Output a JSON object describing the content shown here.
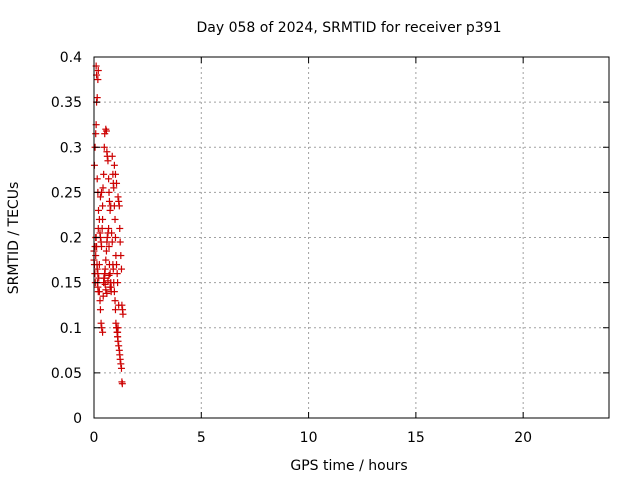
{
  "chart_data": {
    "type": "scatter",
    "title": "Day 058 of 2024, SRMTID for receiver p391",
    "xlabel": "GPS time / hours",
    "ylabel": "SRMTID / TECUs",
    "xlim": [
      0,
      24
    ],
    "ylim": [
      0,
      0.4
    ],
    "x_ticks": [
      0,
      5,
      10,
      15,
      20
    ],
    "x_tick_labels": [
      "0",
      "5",
      "10",
      "15",
      "20"
    ],
    "y_ticks": [
      0,
      0.05,
      0.1,
      0.15,
      0.2,
      0.25,
      0.3,
      0.35,
      0.4
    ],
    "y_tick_labels": [
      "0",
      "0.05",
      "0.1",
      "0.15",
      "0.2",
      "0.25",
      "0.3",
      "0.35",
      "0.4"
    ],
    "grid": true,
    "marker": "+",
    "color": "#cc0000",
    "series": [
      {
        "name": "SRMTID",
        "x": [
          0.0,
          0.02,
          0.04,
          0.06,
          0.08,
          0.1,
          0.12,
          0.14,
          0.16,
          0.18,
          0.2,
          0.02,
          0.05,
          0.08,
          0.1,
          0.12,
          0.15,
          0.18,
          0.2,
          0.1,
          0.12,
          0.15,
          0.18,
          0.21,
          0.25,
          0.28,
          0.3,
          0.33,
          0.35,
          0.38,
          0.4,
          0.42,
          0.45,
          0.48,
          0.5,
          0.25,
          0.28,
          0.3,
          0.33,
          0.36,
          0.4,
          0.43,
          0.46,
          0.5,
          0.52,
          0.55,
          0.58,
          0.6,
          0.62,
          0.65,
          0.68,
          0.7,
          0.72,
          0.75,
          0.78,
          0.8,
          0.55,
          0.58,
          0.6,
          0.62,
          0.65,
          0.68,
          0.7,
          0.72,
          0.75,
          0.78,
          0.82,
          0.85,
          0.88,
          0.9,
          0.92,
          0.95,
          0.98,
          1.0,
          1.02,
          1.05,
          1.08,
          1.1,
          0.85,
          0.88,
          0.9,
          0.92,
          0.95,
          0.98,
          1.0,
          1.02,
          1.05,
          1.08,
          1.1,
          1.12,
          1.15,
          1.18,
          1.2,
          1.22,
          1.25,
          1.28,
          1.3,
          1.32,
          1.12,
          1.15,
          1.18,
          1.2,
          1.22,
          1.25,
          1.28,
          1.3,
          1.33,
          1.35,
          0.45,
          0.48,
          0.5,
          0.52,
          0.55,
          0.6,
          0.65,
          0.7,
          0.75,
          0.8,
          0.95,
          1.0,
          1.05,
          1.1,
          1.15,
          0.3,
          0.35,
          0.4,
          0.2,
          0.25,
          0.15,
          0.18,
          0.22,
          0.0,
          0.05,
          0.08,
          1.05,
          1.08,
          1.1,
          1.12
        ],
        "y": [
          0.185,
          0.17,
          0.16,
          0.15,
          0.18,
          0.2,
          0.19,
          0.17,
          0.15,
          0.145,
          0.14,
          0.28,
          0.3,
          0.315,
          0.325,
          0.35,
          0.355,
          0.375,
          0.385,
          0.39,
          0.38,
          0.265,
          0.25,
          0.23,
          0.22,
          0.205,
          0.2,
          0.195,
          0.19,
          0.21,
          0.235,
          0.255,
          0.27,
          0.3,
          0.315,
          0.14,
          0.13,
          0.12,
          0.105,
          0.1,
          0.095,
          0.135,
          0.155,
          0.16,
          0.165,
          0.175,
          0.185,
          0.195,
          0.2,
          0.205,
          0.21,
          0.19,
          0.17,
          0.16,
          0.15,
          0.145,
          0.32,
          0.318,
          0.295,
          0.29,
          0.285,
          0.265,
          0.25,
          0.24,
          0.23,
          0.235,
          0.205,
          0.195,
          0.17,
          0.165,
          0.15,
          0.14,
          0.13,
          0.12,
          0.105,
          0.1,
          0.095,
          0.09,
          0.29,
          0.27,
          0.26,
          0.255,
          0.235,
          0.22,
          0.2,
          0.18,
          0.17,
          0.16,
          0.095,
          0.085,
          0.08,
          0.075,
          0.07,
          0.065,
          0.06,
          0.055,
          0.04,
          0.038,
          0.245,
          0.24,
          0.235,
          0.21,
          0.195,
          0.18,
          0.165,
          0.125,
          0.12,
          0.115,
          0.15,
          0.155,
          0.16,
          0.148,
          0.142,
          0.138,
          0.152,
          0.158,
          0.145,
          0.14,
          0.28,
          0.27,
          0.26,
          0.15,
          0.125,
          0.245,
          0.25,
          0.22,
          0.21,
          0.17,
          0.165,
          0.16,
          0.155,
          0.175,
          0.19,
          0.2,
          0.1,
          0.095,
          0.09,
          0.1
        ]
      }
    ]
  }
}
